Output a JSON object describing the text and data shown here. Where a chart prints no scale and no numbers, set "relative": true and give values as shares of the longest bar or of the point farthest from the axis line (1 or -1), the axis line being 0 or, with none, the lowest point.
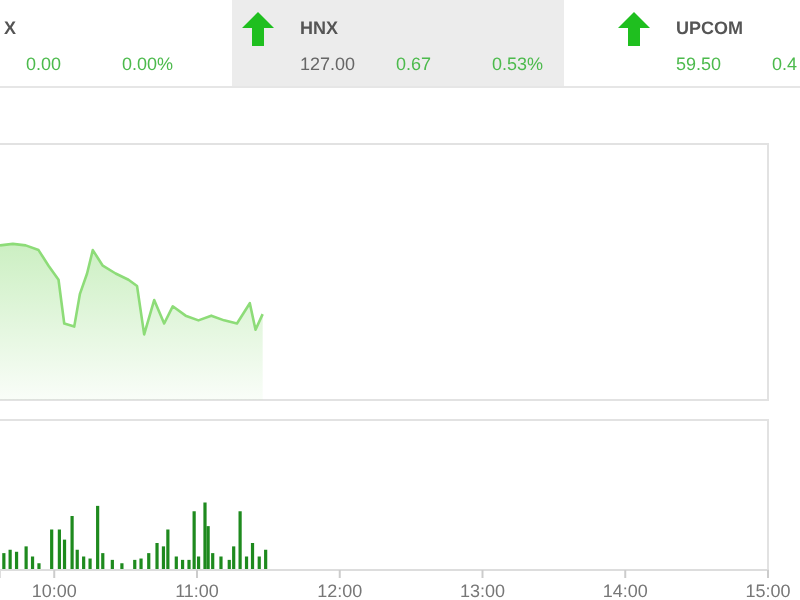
{
  "chart_data": [
    {
      "type": "other",
      "annotations": [
        "X",
        "0.00",
        "0.00%",
        "HNX",
        "127.00",
        "0.67",
        "0.53%",
        "UPCOM",
        "59.50",
        "0.4"
      ]
    },
    {
      "type": "area",
      "relative": true,
      "tick_labels": false,
      "xlim": [
        9.62,
        15
      ],
      "series": [
        {
          "color": "#8ddc78",
          "x": [
            9.62,
            9.71,
            9.8,
            9.89,
            9.96,
            10.03,
            10.07,
            10.14,
            10.18,
            10.23,
            10.27,
            10.34,
            10.43,
            10.52,
            10.58,
            10.63,
            10.7,
            10.77,
            10.83,
            10.92,
            11.01,
            11.1,
            11.19,
            11.28,
            11.37,
            11.41,
            11.46
          ],
          "values": [
            0.99,
            1.0,
            0.99,
            0.96,
            0.86,
            0.77,
            0.49,
            0.47,
            0.68,
            0.81,
            0.96,
            0.86,
            0.81,
            0.77,
            0.73,
            0.42,
            0.64,
            0.49,
            0.6,
            0.54,
            0.51,
            0.54,
            0.51,
            0.49,
            0.62,
            0.45,
            0.55
          ]
        }
      ]
    },
    {
      "type": "bar",
      "relative": true,
      "tick_labels": "x",
      "xlim": [
        9.62,
        15
      ],
      "xticks": [
        {
          "value": 10,
          "label": "10:00"
        },
        {
          "value": 11,
          "label": "11:00"
        },
        {
          "value": 12,
          "label": "12:00"
        },
        {
          "value": 13,
          "label": "13:00"
        },
        {
          "value": 14,
          "label": "14:00"
        },
        {
          "value": 15,
          "label": "15:00"
        }
      ],
      "x": [
        9.647,
        9.691,
        9.736,
        9.803,
        9.848,
        9.893,
        9.982,
        10.036,
        10.072,
        10.125,
        10.161,
        10.206,
        10.251,
        10.304,
        10.34,
        10.407,
        10.474,
        10.564,
        10.608,
        10.662,
        10.72,
        10.765,
        10.796,
        10.855,
        10.899,
        10.944,
        10.98,
        11.011,
        11.056,
        11.078,
        11.11,
        11.168,
        11.226,
        11.257,
        11.302,
        11.347,
        11.389,
        11.436,
        11.481
      ],
      "values": [
        0.25,
        0.3,
        0.27,
        0.35,
        0.2,
        0.1,
        0.6,
        0.6,
        0.45,
        0.8,
        0.3,
        0.2,
        0.17,
        0.95,
        0.25,
        0.15,
        0.1,
        0.15,
        0.17,
        0.25,
        0.4,
        0.35,
        0.6,
        0.2,
        0.15,
        0.15,
        0.87,
        0.2,
        1,
        0.65,
        0.25,
        0.2,
        0.15,
        0.35,
        0.87,
        0.2,
        0.4,
        0.2,
        0.3
      ],
      "color": "#1e8a1e"
    }
  ]
}
